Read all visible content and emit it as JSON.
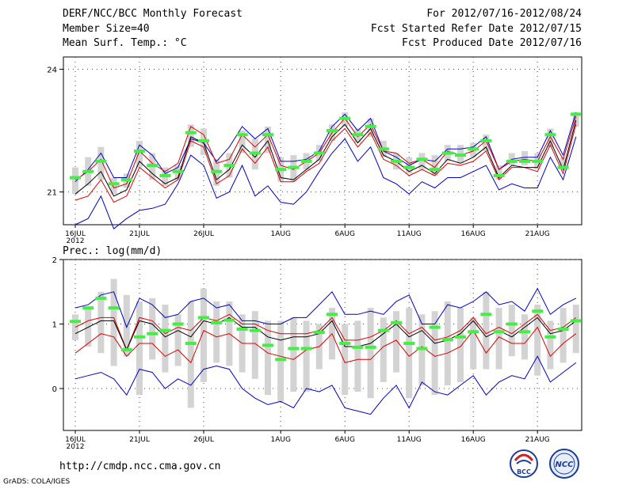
{
  "header": {
    "title": "DERF/NCC/BCC Monthly Forecast",
    "member_size": "Member Size=40",
    "variable": "Mean Surf. Temp.: °C",
    "period": "For 2012/07/16-2012/08/24",
    "refer_date": "Fcst Started Refer Date 2012/07/15",
    "produced_date": "Fcst Produced Date 2012/07/16"
  },
  "footer": {
    "url": "http://cmdp.ncc.cma.gov.cn",
    "credit": "GrADS: COLA/IGES",
    "logo_bcc_text": "BCC",
    "logo_ncc_text": "NCC"
  },
  "colors": {
    "envelope": "#0000cc",
    "spread": "#dd0000",
    "mean": "#000000",
    "box": "#d3d3d3",
    "marker": "#44ee44"
  },
  "chart_data": [
    {
      "type": "line",
      "title": "Mean Surf. Temp.: °C",
      "x_tick_labels": [
        "16JUL",
        "21JUL",
        "26JUL",
        "1AUG",
        "6AUG",
        "11AUG",
        "16AUG",
        "21AUG"
      ],
      "x_year_label": "2012",
      "y_ticks": [
        21,
        24
      ],
      "ylim": [
        20.2,
        24.3
      ],
      "grid": true,
      "series": [
        {
          "name": "max",
          "values": [
            21.25,
            21.55,
            21.95,
            21.35,
            21.35,
            22.15,
            21.9,
            21.45,
            21.6,
            22.3,
            22.2,
            21.75,
            22.1,
            22.6,
            22.3,
            22.55,
            21.75,
            21.75,
            21.8,
            22.0,
            22.6,
            22.9,
            22.5,
            22.8,
            22.0,
            21.85,
            21.65,
            21.8,
            21.75,
            22.05,
            22.05,
            22.1,
            22.35,
            21.55,
            21.8,
            21.85,
            21.85,
            22.5,
            21.9,
            22.95
          ]
        },
        {
          "name": "upper",
          "values": [
            21.3,
            21.5,
            21.8,
            21.1,
            21.2,
            22.0,
            21.7,
            21.5,
            21.7,
            22.6,
            22.4,
            21.7,
            21.8,
            22.4,
            22.1,
            22.4,
            21.65,
            21.55,
            21.75,
            21.95,
            22.45,
            22.8,
            22.35,
            22.65,
            22.0,
            21.95,
            21.7,
            21.8,
            21.6,
            22.0,
            21.9,
            22.0,
            22.25,
            21.55,
            21.75,
            21.8,
            21.75,
            22.35,
            21.8,
            22.85
          ]
        },
        {
          "name": "mean",
          "values": [
            20.95,
            21.2,
            21.5,
            20.9,
            21.05,
            21.75,
            21.45,
            21.2,
            21.35,
            22.35,
            22.2,
            21.3,
            21.55,
            22.15,
            21.85,
            22.25,
            21.35,
            21.3,
            21.55,
            21.8,
            22.35,
            22.65,
            22.2,
            22.55,
            21.9,
            21.75,
            21.5,
            21.65,
            21.45,
            21.8,
            21.7,
            21.85,
            22.1,
            21.35,
            21.65,
            21.6,
            21.6,
            22.25,
            21.55,
            22.75
          ]
        },
        {
          "name": "lower",
          "values": [
            20.8,
            20.9,
            21.3,
            20.75,
            20.9,
            21.6,
            21.35,
            21.1,
            21.3,
            22.25,
            22.1,
            21.2,
            21.4,
            22.05,
            21.7,
            22.1,
            21.25,
            21.25,
            21.5,
            21.7,
            22.25,
            22.55,
            22.1,
            22.45,
            21.8,
            21.65,
            21.4,
            21.55,
            21.4,
            21.7,
            21.65,
            21.75,
            22.0,
            21.3,
            21.6,
            21.6,
            21.5,
            22.15,
            21.45,
            22.65
          ]
        },
        {
          "name": "min",
          "values": [
            20.2,
            20.35,
            20.9,
            20.1,
            20.35,
            20.55,
            20.6,
            20.7,
            21.2,
            21.9,
            21.65,
            20.85,
            21.0,
            21.65,
            20.9,
            21.15,
            20.75,
            20.7,
            21.0,
            21.5,
            21.95,
            22.3,
            21.75,
            22.1,
            21.35,
            21.2,
            20.95,
            21.25,
            21.1,
            21.35,
            21.35,
            21.5,
            21.65,
            21.05,
            21.2,
            21.1,
            21.1,
            21.85,
            21.3,
            22.35
          ]
        },
        {
          "name": "observed_marker",
          "values": [
            21.35,
            21.5,
            21.75,
            21.2,
            21.3,
            22.0,
            21.65,
            21.4,
            21.5,
            22.45,
            22.25,
            21.5,
            21.65,
            22.4,
            21.95,
            22.4,
            21.55,
            21.6,
            21.75,
            21.95,
            22.5,
            22.8,
            22.4,
            22.6,
            22.05,
            21.75,
            21.6,
            21.8,
            21.55,
            21.95,
            21.9,
            22.05,
            22.25,
            21.4,
            21.75,
            21.75,
            21.75,
            22.4,
            21.6,
            22.9
          ]
        },
        {
          "name": "box_top",
          "values": [
            21.6,
            21.85,
            22.1,
            21.35,
            21.45,
            22.25,
            21.95,
            21.6,
            21.65,
            22.65,
            22.55,
            21.8,
            21.95,
            22.5,
            22.3,
            22.6,
            21.85,
            21.9,
            21.95,
            22.15,
            22.65,
            22.95,
            22.55,
            22.8,
            22.25,
            21.95,
            21.85,
            21.95,
            21.9,
            22.15,
            22.15,
            22.2,
            22.4,
            21.65,
            21.95,
            22.0,
            21.95,
            22.55,
            21.85,
            22.95
          ]
        },
        {
          "name": "box_bottom",
          "values": [
            20.95,
            21.15,
            21.3,
            20.95,
            21.1,
            21.6,
            21.3,
            21.15,
            21.3,
            22.1,
            21.9,
            21.15,
            21.35,
            21.95,
            21.55,
            21.95,
            21.25,
            21.25,
            21.55,
            21.75,
            22.25,
            22.6,
            22.2,
            22.35,
            21.85,
            21.55,
            21.45,
            21.55,
            21.4,
            21.75,
            21.7,
            21.85,
            22.0,
            21.3,
            21.65,
            21.65,
            21.55,
            22.1,
            21.6,
            22.6
          ]
        }
      ]
    },
    {
      "type": "line",
      "title": "Prec.: log(mm/d)",
      "x_tick_labels": [
        "16JUL",
        "21JUL",
        "26JUL",
        "1AUG",
        "6AUG",
        "11AUG",
        "16AUG",
        "21AUG"
      ],
      "x_year_label": "2012",
      "y_ticks": [
        0,
        1,
        2
      ],
      "ylim": [
        -0.65,
        2.0
      ],
      "grid": true,
      "series": [
        {
          "name": "max",
          "values": [
            1.25,
            1.3,
            1.45,
            1.5,
            0.95,
            1.4,
            1.3,
            1.1,
            1.15,
            1.35,
            1.4,
            1.25,
            1.3,
            1.05,
            1.05,
            1.0,
            1.0,
            1.1,
            1.1,
            1.3,
            1.5,
            1.15,
            1.15,
            1.2,
            1.15,
            1.35,
            1.45,
            1.0,
            1.0,
            1.3,
            1.25,
            1.35,
            1.5,
            1.3,
            1.35,
            1.2,
            1.55,
            1.15,
            1.3,
            1.4
          ]
        },
        {
          "name": "upper",
          "values": [
            0.95,
            1.05,
            1.1,
            1.1,
            0.6,
            1.1,
            1.05,
            0.85,
            0.95,
            0.9,
            1.1,
            1.05,
            1.15,
            1.0,
            1.0,
            0.9,
            0.85,
            0.85,
            0.85,
            0.9,
            1.1,
            0.75,
            0.75,
            0.8,
            0.9,
            1.05,
            0.85,
            0.95,
            0.75,
            0.8,
            0.9,
            1.1,
            0.85,
            0.95,
            0.85,
            1.0,
            1.15,
            0.9,
            0.95,
            1.1
          ]
        },
        {
          "name": "mean",
          "values": [
            0.85,
            0.95,
            1.05,
            1.05,
            0.6,
            1.05,
            1.0,
            0.8,
            0.9,
            0.8,
            1.05,
            1.0,
            1.1,
            0.95,
            0.95,
            0.8,
            0.75,
            0.8,
            0.8,
            0.85,
            1.05,
            0.65,
            0.65,
            0.7,
            0.85,
            1.0,
            0.8,
            0.9,
            0.7,
            0.75,
            0.85,
            1.05,
            0.8,
            0.9,
            0.8,
            0.95,
            1.1,
            0.85,
            0.9,
            1.05
          ]
        },
        {
          "name": "lower",
          "values": [
            0.55,
            0.7,
            0.85,
            0.8,
            0.5,
            0.7,
            0.7,
            0.5,
            0.6,
            0.4,
            0.9,
            0.8,
            0.85,
            0.7,
            0.7,
            0.55,
            0.5,
            0.45,
            0.6,
            0.65,
            0.85,
            0.4,
            0.45,
            0.45,
            0.65,
            0.75,
            0.5,
            0.65,
            0.5,
            0.55,
            0.65,
            0.9,
            0.55,
            0.8,
            0.7,
            0.7,
            0.95,
            0.5,
            0.7,
            0.85
          ]
        },
        {
          "name": "min",
          "values": [
            0.15,
            0.2,
            0.25,
            0.15,
            -0.1,
            0.3,
            0.25,
            0.0,
            0.15,
            0.05,
            0.3,
            0.35,
            0.3,
            0.0,
            -0.15,
            -0.25,
            -0.2,
            -0.3,
            0.0,
            -0.05,
            0.05,
            -0.3,
            -0.35,
            -0.4,
            -0.15,
            0.05,
            -0.3,
            0.1,
            -0.05,
            -0.1,
            0.05,
            0.2,
            -0.1,
            0.1,
            0.2,
            0.15,
            0.5,
            0.1,
            0.25,
            0.4
          ]
        },
        {
          "name": "observed_marker",
          "values": [
            1.04,
            1.25,
            1.4,
            1.25,
            0.6,
            0.8,
            0.85,
            0.9,
            1.0,
            0.7,
            1.1,
            1.02,
            1.06,
            0.92,
            0.9,
            0.67,
            0.45,
            0.62,
            0.62,
            0.87,
            1.15,
            0.7,
            0.64,
            0.64,
            0.9,
            1.02,
            0.7,
            0.62,
            0.95,
            0.76,
            0.8,
            0.88,
            1.15,
            0.88,
            1.0,
            0.88,
            1.2,
            0.8,
            0.92,
            1.05
          ]
        },
        {
          "name": "box_top",
          "values": [
            1.15,
            1.25,
            1.5,
            1.7,
            1.45,
            1.35,
            1.4,
            1.3,
            1.15,
            1.35,
            1.55,
            1.35,
            1.35,
            1.15,
            1.2,
            1.05,
            1.05,
            1.1,
            1.05,
            1.0,
            1.25,
            1.0,
            1.05,
            1.25,
            1.1,
            1.2,
            1.25,
            1.15,
            1.2,
            1.35,
            1.25,
            1.1,
            1.5,
            1.25,
            1.3,
            1.15,
            1.3,
            1.05,
            1.25,
            1.3
          ]
        },
        {
          "name": "box_bottom",
          "values": [
            0.75,
            0.65,
            0.55,
            0.35,
            0.5,
            -0.1,
            0.45,
            0.25,
            0.35,
            -0.3,
            0.1,
            0.4,
            0.35,
            0.25,
            0.15,
            -0.1,
            -0.2,
            -0.05,
            -0.05,
            0.3,
            0.45,
            -0.1,
            -0.05,
            -0.15,
            0.1,
            0.25,
            -0.15,
            0.05,
            -0.1,
            0.05,
            0.1,
            0.3,
            0.3,
            0.3,
            0.5,
            0.45,
            0.2,
            0.3,
            0.4,
            0.55
          ]
        }
      ]
    }
  ]
}
